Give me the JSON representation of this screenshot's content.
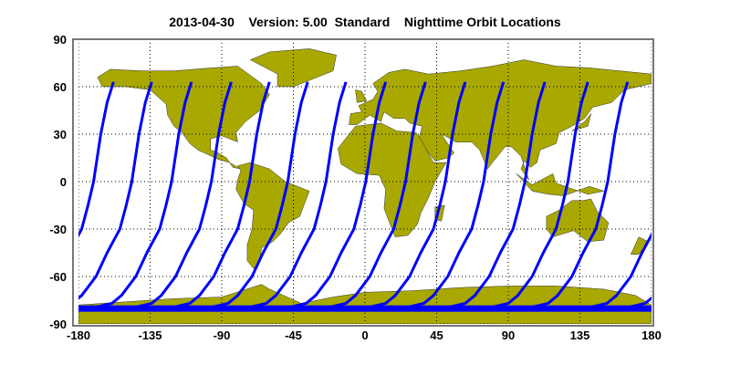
{
  "chart_data": {
    "type": "map",
    "title": "2013-04-30    Version: 5.00  Standard    Nighttime Orbit Locations",
    "xlim": [
      -180,
      180
    ],
    "ylim": [
      -90,
      90
    ],
    "x_ticks": [
      -180,
      -135,
      -90,
      -45,
      0,
      45,
      90,
      135,
      180
    ],
    "y_ticks": [
      90,
      60,
      30,
      0,
      -30,
      -60,
      -90
    ],
    "grid": true,
    "grid_style": "dotted",
    "colors": {
      "land": "#a8a800",
      "orbit": "#0000ff",
      "ocean": "#ffffff"
    },
    "orbit_track_top_longitudes": [
      -158,
      -134,
      -109,
      -84,
      -60,
      -36,
      -12,
      13,
      38,
      63,
      87,
      113,
      140,
      165
    ],
    "orbit_track_top_latitude": 63,
    "orbit_track_bottom_latitude": -80
  }
}
